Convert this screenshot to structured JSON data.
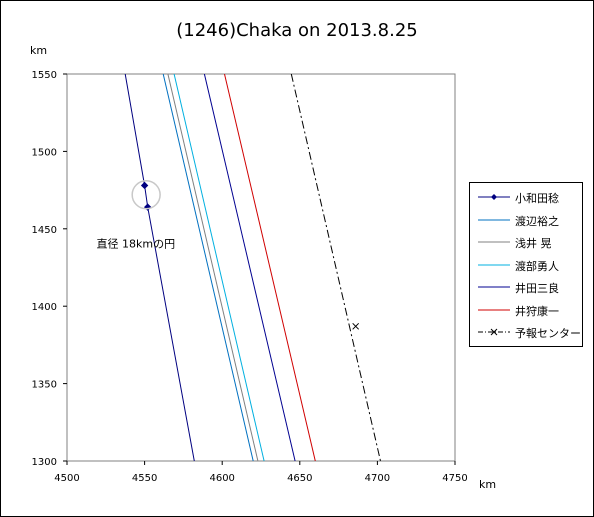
{
  "chart_data": {
    "type": "line",
    "title": "(1246)Chaka on 2013.8.25",
    "xlabel": "km",
    "ylabel": "km",
    "xlim": [
      4500,
      4750
    ],
    "ylim": [
      1300,
      1550
    ],
    "x_ticks": [
      4500,
      4550,
      4600,
      4650,
      4700,
      4750
    ],
    "y_ticks": [
      1300,
      1350,
      1400,
      1450,
      1500,
      1550
    ],
    "grid": false,
    "legend_position": "right",
    "series": [
      {
        "name": "小和田稔",
        "color": "#000080",
        "style": "solid-markers",
        "points": [
          [
            4537.5,
            1550
          ],
          [
            4550,
            1478
          ],
          [
            4552,
            1464
          ],
          [
            4582,
            1300
          ]
        ],
        "markers": [
          [
            4550,
            1478
          ],
          [
            4552,
            1464
          ]
        ]
      },
      {
        "name": "渡辺裕之",
        "color": "#0070c0",
        "style": "solid",
        "points": [
          [
            4562,
            1550
          ],
          [
            4620,
            1300
          ]
        ]
      },
      {
        "name": "浅井 晃",
        "color": "#808080",
        "style": "solid",
        "points": [
          [
            4565,
            1550
          ],
          [
            4623,
            1300
          ]
        ]
      },
      {
        "name": "渡部勇人",
        "color": "#00b0e0",
        "style": "solid",
        "points": [
          [
            4569,
            1550
          ],
          [
            4627,
            1300
          ]
        ]
      },
      {
        "name": "井田三良",
        "color": "#000090",
        "style": "solid",
        "points": [
          [
            4588.5,
            1550
          ],
          [
            4647,
            1300
          ]
        ]
      },
      {
        "name": "井狩康一",
        "color": "#d00000",
        "style": "solid",
        "points": [
          [
            4601.5,
            1550
          ],
          [
            4660,
            1300
          ]
        ]
      },
      {
        "name": "予報センター",
        "color": "#000000",
        "style": "dashdot-x",
        "points": [
          [
            4644.5,
            1550
          ],
          [
            4702,
            1300
          ]
        ],
        "markers": [
          [
            4686,
            1387
          ]
        ]
      }
    ],
    "annotations": [
      {
        "text": "直径 18kmの円",
        "x": 4519,
        "y": 1438
      },
      {
        "shape": "circle",
        "center": [
          4551,
          1472
        ],
        "diameter_km": 18
      }
    ]
  }
}
